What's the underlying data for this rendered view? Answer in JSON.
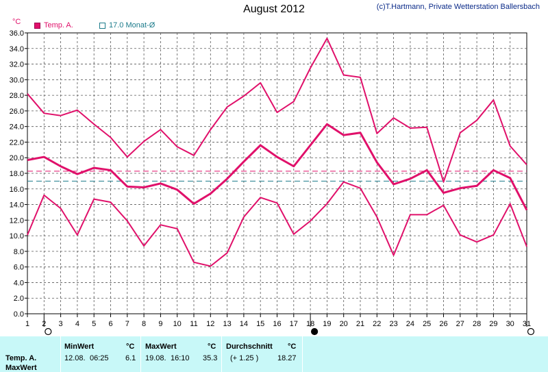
{
  "header": {
    "title": "August 2012",
    "copyright": "(c)T.Hartmann, Private Wetterstation Ballersbach",
    "unit": "°C"
  },
  "legend": [
    {
      "label": "Temp. A.",
      "color": "#e0106a"
    },
    {
      "label": "17.0 Monat-Ø",
      "color": "#1a7a8a"
    }
  ],
  "chart_data": {
    "type": "line",
    "title": "August 2012",
    "ylabel": "°C",
    "xlabel": "",
    "ylim": [
      0,
      36
    ],
    "xlim": [
      1,
      31
    ],
    "grid": true,
    "y_ticks": [
      "0.0",
      "2.0",
      "4.0",
      "6.0",
      "8.0",
      "10.0",
      "12.0",
      "14.0",
      "16.0",
      "18.0",
      "20.0",
      "22.0",
      "24.0",
      "26.0",
      "28.0",
      "30.0",
      "32.0",
      "34.0",
      "36.0"
    ],
    "x": [
      1,
      2,
      3,
      4,
      5,
      6,
      7,
      8,
      9,
      10,
      11,
      12,
      13,
      14,
      15,
      16,
      17,
      18,
      19,
      20,
      21,
      22,
      23,
      24,
      25,
      26,
      27,
      28,
      29,
      30,
      31
    ],
    "series": [
      {
        "name": "max",
        "color": "#e0106a",
        "values": [
          28.2,
          25.7,
          25.4,
          26.1,
          24.3,
          22.6,
          20.1,
          22.1,
          23.6,
          21.4,
          20.3,
          23.6,
          26.5,
          27.9,
          29.6,
          25.8,
          27.2,
          31.5,
          35.3,
          30.6,
          30.3,
          23.1,
          25.1,
          23.8,
          23.9,
          16.9,
          23.2,
          24.8,
          27.4,
          21.5,
          19.1
        ]
      },
      {
        "name": "avg",
        "color": "#e0106a",
        "values": [
          19.7,
          20.1,
          18.9,
          17.9,
          18.7,
          18.4,
          16.3,
          16.2,
          16.7,
          15.9,
          14.1,
          15.4,
          17.3,
          19.5,
          21.6,
          20.1,
          18.9,
          21.6,
          24.3,
          22.9,
          23.2,
          19.4,
          16.6,
          17.3,
          18.4,
          15.5,
          16.1,
          16.4,
          18.4,
          17.4,
          13.3
        ]
      },
      {
        "name": "min",
        "color": "#e0106a",
        "values": [
          10.1,
          15.2,
          13.5,
          10.1,
          14.7,
          14.3,
          11.9,
          8.7,
          11.4,
          10.9,
          6.6,
          6.1,
          7.8,
          12.4,
          14.9,
          14.2,
          10.2,
          11.9,
          14.1,
          16.9,
          16.1,
          12.4,
          7.5,
          12.7,
          12.7,
          13.9,
          10.1,
          9.2,
          10.1,
          14.1,
          8.6
        ]
      }
    ],
    "reference_lines": [
      {
        "value": 18.27,
        "color": "#e0106a",
        "style": "dashed"
      },
      {
        "value": 17.0,
        "color": "#1a7a8a",
        "style": "dashed"
      }
    ],
    "moon_phases": [
      {
        "day": 2,
        "phase": "full"
      },
      {
        "day": 18,
        "phase": "new"
      },
      {
        "day": 31,
        "phase": "full"
      }
    ]
  },
  "table": {
    "row_label_1": "Temp. A.",
    "row_label_2": "MaxWert",
    "min_header": "MinWert",
    "min_unit": "°C",
    "min_date": "12.08.",
    "min_time": "06:25",
    "min_value": "6.1",
    "max_header": "MaxWert",
    "max_unit": "°C",
    "max_date": "19.08.",
    "max_time": "16:10",
    "max_value": "35.3",
    "avg_header": "Durchschnitt",
    "avg_unit": "°C",
    "avg_delta": "(+ 1.25 )",
    "avg_value": "18.27"
  }
}
